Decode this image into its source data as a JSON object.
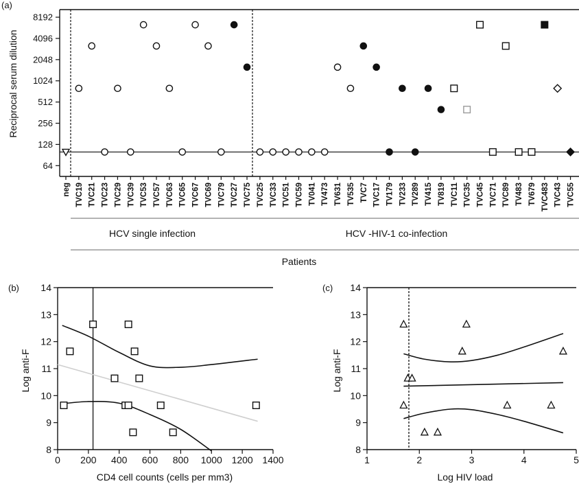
{
  "panel_labels": {
    "a": "(a)",
    "b": "(b)",
    "c": "(c)"
  },
  "colors": {
    "ink": "#111111",
    "grey_point": "#9a9a9a",
    "grey_line": "#cfcfcf"
  },
  "chart_data": [
    {
      "panel": "(a)",
      "type": "scatter",
      "ylabel": "Reciprocal serum dilution",
      "xlabel": "Patients",
      "yscale": "log2",
      "yticks": [
        64,
        128,
        256,
        512,
        1024,
        2048,
        4096,
        8192
      ],
      "ylim": [
        45,
        10500
      ],
      "baseline": 100,
      "groups": [
        "HCV single infection",
        "HCV -HIV-1 co-infection"
      ],
      "categories": [
        "neg",
        "TVC19",
        "TVC21",
        "TVC23",
        "TVC29",
        "TVC39",
        "TVC53",
        "TVC57",
        "TVC63",
        "TVC65",
        "TVC67",
        "TVC69",
        "TVC79",
        "TVC27",
        "TVC75",
        "TVC25",
        "TVC33",
        "TVC51",
        "TVC59",
        "TV041",
        "TV473",
        "TV631",
        "TV535",
        "TVC7",
        "TVC17",
        "TV179",
        "TV233",
        "TV289",
        "TV415",
        "TV819",
        "TVC11",
        "TVC35",
        "TVC45",
        "TVC71",
        "TVC89",
        "TV483",
        "TV679",
        "TVC483",
        "TVC43",
        "TVC55"
      ],
      "points": [
        {
          "x": "neg",
          "y": 100,
          "marker": "triangle-down-open"
        },
        {
          "x": "TVC19",
          "y": 800,
          "marker": "circle-open"
        },
        {
          "x": "TVC21",
          "y": 3200,
          "marker": "circle-open"
        },
        {
          "x": "TVC23",
          "y": 100,
          "marker": "circle-open"
        },
        {
          "x": "TVC29",
          "y": 800,
          "marker": "circle-open"
        },
        {
          "x": "TVC39",
          "y": 100,
          "marker": "circle-open"
        },
        {
          "x": "TVC53",
          "y": 6400,
          "marker": "circle-open"
        },
        {
          "x": "TVC57",
          "y": 3200,
          "marker": "circle-open"
        },
        {
          "x": "TVC63",
          "y": 800,
          "marker": "circle-open"
        },
        {
          "x": "TVC65",
          "y": 100,
          "marker": "circle-open"
        },
        {
          "x": "TVC67",
          "y": 6400,
          "marker": "circle-open"
        },
        {
          "x": "TVC69",
          "y": 3200,
          "marker": "circle-open"
        },
        {
          "x": "TVC79",
          "y": 100,
          "marker": "circle-open"
        },
        {
          "x": "TVC27",
          "y": 6400,
          "marker": "circle-filled"
        },
        {
          "x": "TVC75",
          "y": 1600,
          "marker": "circle-filled"
        },
        {
          "x": "TVC25",
          "y": 100,
          "marker": "circle-open"
        },
        {
          "x": "TVC33",
          "y": 100,
          "marker": "circle-open"
        },
        {
          "x": "TVC51",
          "y": 100,
          "marker": "circle-open"
        },
        {
          "x": "TVC59",
          "y": 100,
          "marker": "circle-open"
        },
        {
          "x": "TV041",
          "y": 100,
          "marker": "circle-open"
        },
        {
          "x": "TV473",
          "y": 100,
          "marker": "circle-open"
        },
        {
          "x": "TV631",
          "y": 1600,
          "marker": "circle-open"
        },
        {
          "x": "TV535",
          "y": 800,
          "marker": "circle-open"
        },
        {
          "x": "TVC7",
          "y": 3200,
          "marker": "circle-filled"
        },
        {
          "x": "TVC17",
          "y": 1600,
          "marker": "circle-filled"
        },
        {
          "x": "TV179",
          "y": 100,
          "marker": "circle-filled"
        },
        {
          "x": "TV233",
          "y": 800,
          "marker": "circle-filled"
        },
        {
          "x": "TV289",
          "y": 100,
          "marker": "circle-filled"
        },
        {
          "x": "TV415",
          "y": 800,
          "marker": "circle-filled"
        },
        {
          "x": "TV819",
          "y": 400,
          "marker": "circle-filled"
        },
        {
          "x": "TVC11",
          "y": 800,
          "marker": "square-open"
        },
        {
          "x": "TVC35",
          "y": 400,
          "marker": "square-grey"
        },
        {
          "x": "TVC45",
          "y": 6400,
          "marker": "square-open"
        },
        {
          "x": "TVC71",
          "y": 100,
          "marker": "square-open"
        },
        {
          "x": "TVC89",
          "y": 3200,
          "marker": "square-open"
        },
        {
          "x": "TV483",
          "y": 100,
          "marker": "square-open"
        },
        {
          "x": "TV679",
          "y": 100,
          "marker": "square-open"
        },
        {
          "x": "TVC483",
          "y": 6400,
          "marker": "square-filled"
        },
        {
          "x": "TVC43",
          "y": 800,
          "marker": "diamond-open"
        },
        {
          "x": "TVC55",
          "y": 100,
          "marker": "diamond-filled"
        }
      ]
    },
    {
      "panel": "(b)",
      "type": "scatter",
      "xlabel": "CD4 cell counts (cells per mm3)",
      "ylabel": "Log anti-F",
      "xlim": [
        0,
        1400
      ],
      "ylim": [
        8,
        14
      ],
      "xticks": [
        0,
        200,
        400,
        600,
        800,
        1000,
        1200,
        1400
      ],
      "yticks": [
        8,
        9,
        10,
        11,
        12,
        13,
        14
      ],
      "vline": 230,
      "marker": "square-open",
      "x": [
        40,
        80,
        230,
        370,
        440,
        460,
        460,
        490,
        500,
        530,
        670,
        750,
        1290
      ],
      "y": [
        9.64,
        11.64,
        12.64,
        10.64,
        9.64,
        9.64,
        12.64,
        8.64,
        11.64,
        10.64,
        9.64,
        8.64,
        9.64
      ],
      "fit_line": [
        [
          0,
          11.15
        ],
        [
          1300,
          9.05
        ]
      ],
      "ci_upper": [
        [
          30,
          12.6
        ],
        [
          200,
          12.2
        ],
        [
          400,
          11.6
        ],
        [
          600,
          11.1
        ],
        [
          800,
          11.05
        ],
        [
          1000,
          11.15
        ],
        [
          1300,
          11.35
        ]
      ],
      "ci_lower": [
        [
          30,
          9.7
        ],
        [
          200,
          9.78
        ],
        [
          400,
          9.72
        ],
        [
          600,
          9.3
        ],
        [
          800,
          8.75
        ],
        [
          1000,
          7.95
        ]
      ]
    },
    {
      "panel": "(c)",
      "type": "scatter",
      "xlabel": "Log HIV load",
      "ylabel": "Log anti-F",
      "xlim": [
        1,
        5
      ],
      "ylim": [
        8,
        14
      ],
      "xticks": [
        1,
        2,
        3,
        4,
        5
      ],
      "yticks": [
        8,
        9,
        10,
        11,
        12,
        13,
        14
      ],
      "vline": 1.8,
      "marker": "triangle-open",
      "x": [
        1.7,
        1.7,
        1.78,
        1.86,
        2.1,
        2.35,
        2.82,
        2.9,
        3.68,
        4.52,
        4.75
      ],
      "y": [
        12.64,
        9.64,
        10.64,
        10.64,
        8.64,
        8.64,
        11.64,
        12.64,
        9.64,
        9.64,
        11.64
      ],
      "fit_line": [
        [
          1.7,
          10.35
        ],
        [
          4.75,
          10.48
        ]
      ],
      "ci_upper": [
        [
          1.7,
          11.55
        ],
        [
          2.1,
          11.35
        ],
        [
          2.6,
          11.25
        ],
        [
          3.0,
          11.3
        ],
        [
          3.5,
          11.5
        ],
        [
          4.0,
          11.8
        ],
        [
          4.75,
          12.3
        ]
      ],
      "ci_lower": [
        [
          1.7,
          9.15
        ],
        [
          2.1,
          9.35
        ],
        [
          2.6,
          9.5
        ],
        [
          3.0,
          9.48
        ],
        [
          3.5,
          9.3
        ],
        [
          4.0,
          9.05
        ],
        [
          4.75,
          8.62
        ]
      ]
    }
  ]
}
